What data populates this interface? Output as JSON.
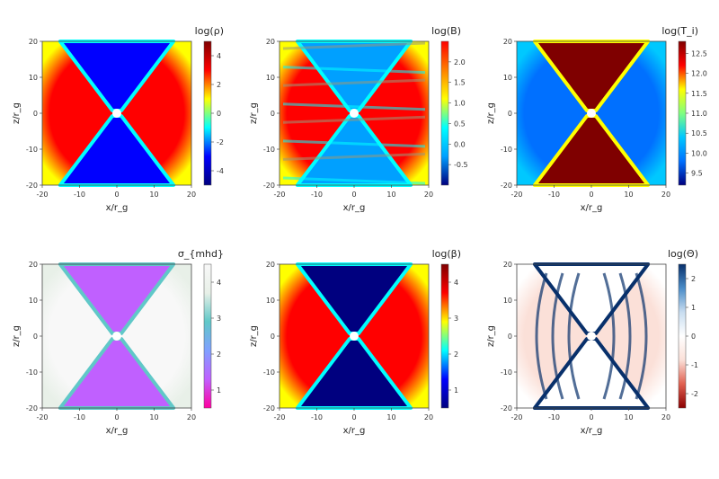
{
  "chart_data": [
    {
      "type": "heatmap",
      "title": "log(ρ)",
      "xlabel": "x/r_g",
      "ylabel": "z/r_g",
      "xticks": [
        "-20",
        "-10",
        "0",
        "10",
        "20"
      ],
      "yticks": [
        "20",
        "10",
        "0",
        "-10",
        "-20"
      ],
      "xlim": [
        -20,
        20
      ],
      "ylim": [
        -20,
        20
      ],
      "colorbar": {
        "ticks": [
          "4",
          "2",
          "0",
          "-2",
          "-4"
        ],
        "range": [
          -5,
          5
        ]
      },
      "colormap": [
        "#00007f",
        "#0000ff",
        "#00ffff",
        "#ffff00",
        "#ff0000",
        "#7f0000"
      ],
      "field": "density: high (red) in equatorial wedge, low (blue) in polar funnels"
    },
    {
      "type": "heatmap",
      "title": "log(B)",
      "xlabel": "x/r_g",
      "ylabel": "z/r_g",
      "xticks": [
        "-20",
        "-10",
        "0",
        "10",
        "20"
      ],
      "yticks": [
        "20",
        "10",
        "0",
        "-10",
        "-20"
      ],
      "xlim": [
        -20,
        20
      ],
      "ylim": [
        -20,
        20
      ],
      "colorbar": {
        "ticks": [
          "2.0",
          "1.5",
          "1.0",
          "0.5",
          "0.0",
          "-0.5"
        ],
        "range": [
          -1,
          2.5
        ]
      },
      "colormap": [
        "#00007f",
        "#00a0ff",
        "#00ffff",
        "#ffff00",
        "#ff8000",
        "#ff0000"
      ],
      "field": "magnetic field strength, peaked near the center"
    },
    {
      "type": "heatmap",
      "title": "log(T_i)",
      "xlabel": "x/r_g",
      "ylabel": "z/r_g",
      "xticks": [
        "-20",
        "-10",
        "0",
        "10",
        "20"
      ],
      "yticks": [
        "20",
        "10",
        "0",
        "-10",
        "-20"
      ],
      "xlim": [
        -20,
        20
      ],
      "ylim": [
        -20,
        20
      ],
      "colorbar": {
        "ticks": [
          "12.5",
          "12.0",
          "11.5",
          "11.0",
          "10.5",
          "10.0",
          "9.5"
        ],
        "range": [
          9.2,
          12.8
        ]
      },
      "colormap": [
        "#00007f",
        "#0070ff",
        "#00c8ff",
        "#80ff80",
        "#ffff00",
        "#ff0000",
        "#7f0000"
      ],
      "field": "ion temperature: hot (dark red) polar funnels, cooler (blue) equatorial region"
    },
    {
      "type": "heatmap",
      "title": "σ_{mhd}",
      "xlabel": "x/r_g",
      "ylabel": "z/r_g",
      "xticks": [
        "-20",
        "-10",
        "0",
        "10",
        "20"
      ],
      "yticks": [
        "20",
        "10",
        "0",
        "-10",
        "-20"
      ],
      "xlim": [
        -20,
        20
      ],
      "ylim": [
        -20,
        20
      ],
      "colorbar": {
        "ticks": [
          "4",
          "3",
          "2",
          "1"
        ],
        "range": [
          0.5,
          4.5
        ]
      },
      "colormap": [
        "#ff00a0",
        "#c060ff",
        "#80a0ff",
        "#60c8c8",
        "#e8f0e8",
        "#f8f8f8"
      ],
      "field": "magnetization: high (purple) in polar funnels, low (white) in equatorial wedge"
    },
    {
      "type": "heatmap",
      "title": "log(β)",
      "xlabel": "x/r_g",
      "ylabel": "z/r_g",
      "xticks": [
        "-20",
        "-10",
        "0",
        "10",
        "20"
      ],
      "yticks": [
        "20",
        "10",
        "0",
        "-10",
        "-20"
      ],
      "xlim": [
        -20,
        20
      ],
      "ylim": [
        -20,
        20
      ],
      "colorbar": {
        "ticks": [
          "4",
          "3",
          "2",
          "1"
        ],
        "range": [
          0.5,
          4.5
        ]
      },
      "colormap": [
        "#00007f",
        "#0000ff",
        "#00ffff",
        "#ffff00",
        "#ff0000",
        "#7f0000"
      ],
      "field": "plasma beta: high (red) in equatorial wedge, low (blue) in polar funnels"
    },
    {
      "type": "heatmap",
      "title": "log(Θ)",
      "xlabel": "x/r_g",
      "ylabel": "z/r_g",
      "xticks": [
        "-20",
        "-10",
        "0",
        "10",
        "20"
      ],
      "yticks": [
        "20",
        "10",
        "0",
        "-10",
        "-20"
      ],
      "xlim": [
        -20,
        20
      ],
      "ylim": [
        -20,
        20
      ],
      "colorbar": {
        "ticks": [
          "2",
          "1",
          "0",
          "-1",
          "-2"
        ],
        "range": [
          -2.5,
          2.5
        ]
      },
      "colormap": [
        "#8b0000",
        "#e06050",
        "#fbe0d8",
        "#ffffff",
        "#c8ddf0",
        "#4a8cc8",
        "#08306b"
      ],
      "field": "log temperature ratio: diverging map, red in the wedge, blue filaments at boundaries"
    }
  ]
}
